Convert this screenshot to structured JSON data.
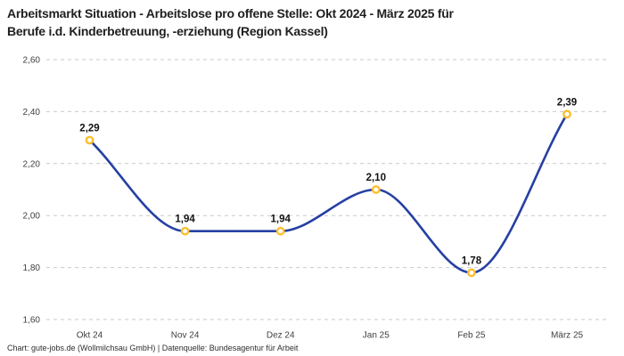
{
  "page": {
    "title_lines": [
      "Arbeitsmarkt Situation - Arbeitslose pro offene Stelle: Okt 2024 - März 2025 für",
      "Berufe i.d. Kinderbetreuung, -erziehung (Region Kassel)"
    ],
    "footer": "Chart: gute-jobs.de (Wollmilchsau GmbH) | Datenquelle: Bundesagentur für Arbeit"
  },
  "chart_data": {
    "type": "line",
    "title": "Arbeitsmarkt Situation - Arbeitslose pro offene Stelle: Okt 2024 - März 2025 für Berufe i.d. Kinderbetreuung, -erziehung (Region Kassel)",
    "categories": [
      "Okt 24",
      "Nov 24",
      "Dez 24",
      "Jan 25",
      "Feb 25",
      "März 25"
    ],
    "values": [
      2.29,
      1.94,
      1.94,
      2.1,
      1.78,
      2.39
    ],
    "value_labels": [
      "2,29",
      "1,94",
      "1,94",
      "2,10",
      "1,78",
      "2,39"
    ],
    "yticks": [
      {
        "value": 2.6,
        "label": "2,60"
      },
      {
        "value": 2.4,
        "label": "2,40"
      },
      {
        "value": 2.2,
        "label": "2,20"
      },
      {
        "value": 2.0,
        "label": "2,00"
      },
      {
        "value": 1.8,
        "label": "1,80"
      },
      {
        "value": 1.6,
        "label": "1,60"
      }
    ],
    "ylim": [
      1.6,
      2.6
    ],
    "xlabel": "",
    "ylabel": "",
    "grid": "horizontal-dashed",
    "legend": "none",
    "curve": "monotone",
    "colors": {
      "line": "#2640a3",
      "marker_stroke": "#fcbe2b",
      "marker_fill": "#ffffff",
      "grid_line": "#c9c9c9"
    }
  }
}
